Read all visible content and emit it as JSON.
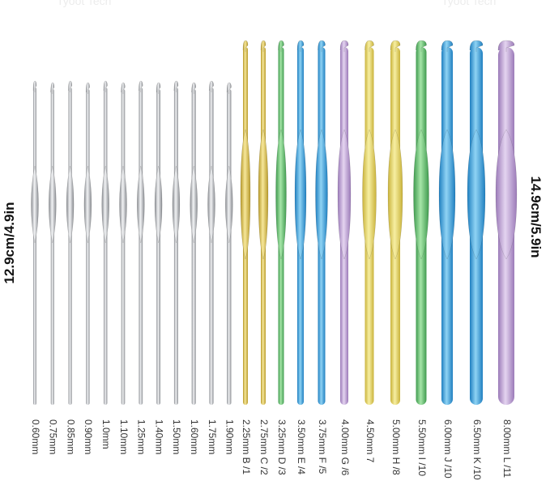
{
  "watermark": "Tyoot Tech",
  "dimensions": {
    "steel": "12.9cm/4.9in",
    "aluminum": "14.9cm/5.9in"
  },
  "steel_hooks": [
    "0.60mm",
    "0.75mm",
    "0.85mm",
    "0.90mm",
    "1.0mm",
    "1.10mm",
    "1.25mm",
    "1.40mm",
    "1.50mm",
    "1.60mm",
    "1.75mm",
    "1.90mm"
  ],
  "aluminum_hooks": [
    "2.25mm B /1",
    "2.75mm C /2",
    "3.25mm D /3",
    "3.50mm E /4",
    "3.75mm F /5",
    "4.00mm G /6",
    "4.50mm 7",
    "5.00mm H /8",
    "5.50mm I /10",
    "6.00mm J /10",
    "6.50mm K /10",
    "8.00mm L /11"
  ]
}
